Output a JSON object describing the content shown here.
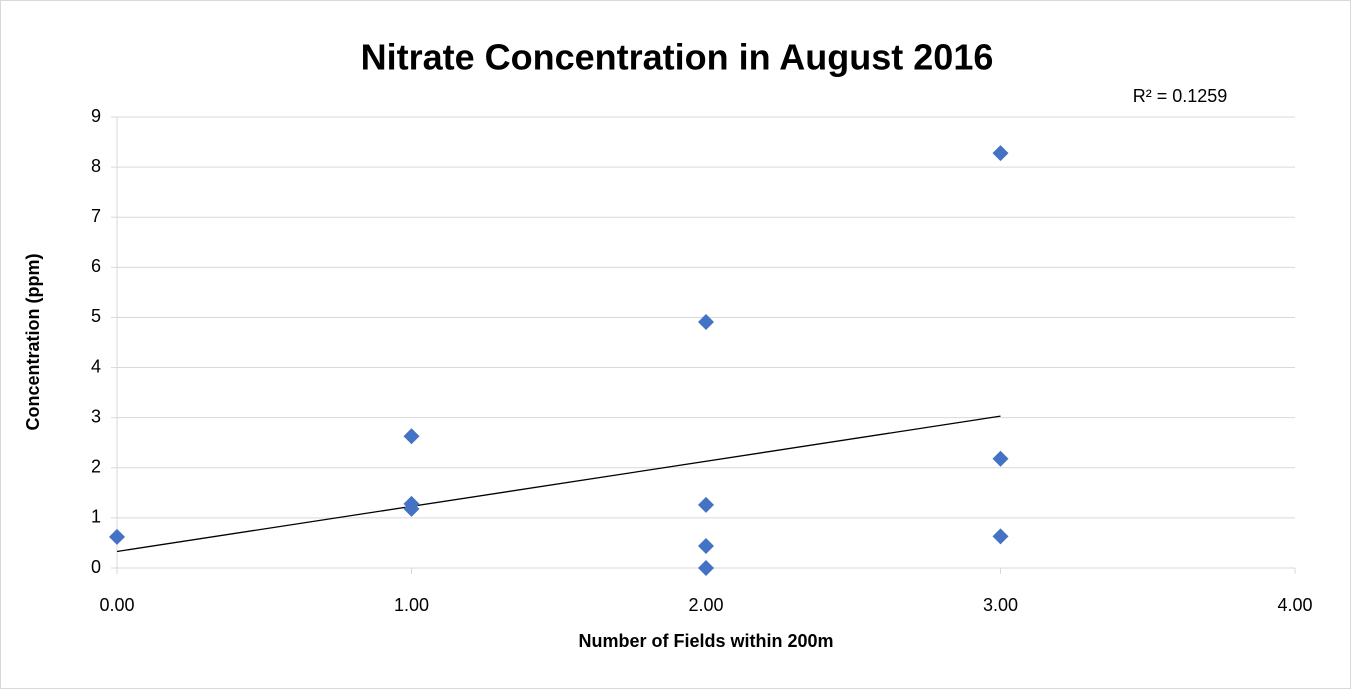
{
  "chart_data": {
    "type": "scatter",
    "title": "Nitrate Concentration in August 2016",
    "xlabel": "Number of Fields within 200m",
    "ylabel": "Concentration (ppm)",
    "annotation": "R² = 0.1259",
    "series": [
      {
        "color": "#4472c4",
        "x": [
          0,
          1,
          1,
          1,
          2,
          2,
          2,
          2,
          3,
          3,
          3
        ],
        "values": [
          0.62,
          2.63,
          1.28,
          1.18,
          4.91,
          1.26,
          0.44,
          0,
          8.28,
          2.18,
          0.63
        ]
      }
    ],
    "trendline": {
      "color": "#000000",
      "x": [
        0,
        3
      ],
      "values": [
        0.33,
        3.03
      ]
    },
    "xlim": [
      0,
      4
    ],
    "xticks": [
      {
        "value": 0,
        "label": "0.00"
      },
      {
        "value": 1,
        "label": "1.00"
      },
      {
        "value": 2,
        "label": "2.00"
      },
      {
        "value": 3,
        "label": "3.00"
      },
      {
        "value": 4,
        "label": "4.00"
      }
    ],
    "ylim": [
      0,
      9
    ],
    "yticks": [
      0,
      1,
      2,
      3,
      4,
      5,
      6,
      7,
      8,
      9
    ],
    "grid": true
  }
}
